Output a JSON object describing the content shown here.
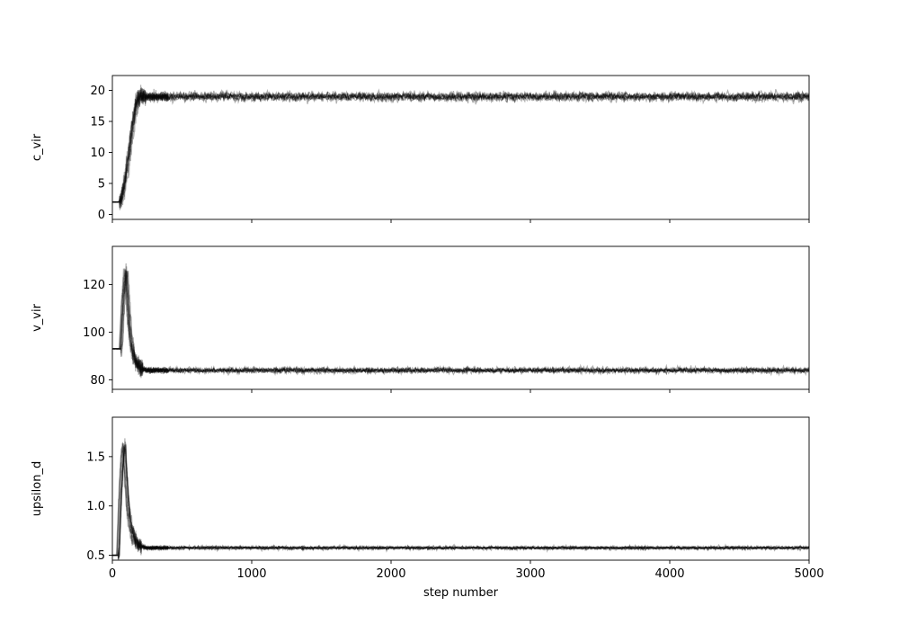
{
  "chart_data": [
    {
      "type": "line",
      "ylabel": "c_vir",
      "xlim": [
        0,
        5000
      ],
      "ylim": [
        -0.8,
        22.4
      ],
      "yticks": [
        0,
        5,
        10,
        15,
        20
      ],
      "initial": 2.0,
      "peak": null,
      "converged": 19.0,
      "noise": 0.55,
      "burn_in": {
        "start": 50,
        "end": 200
      },
      "line_color": "#000000"
    },
    {
      "type": "line",
      "ylabel": "v_vir",
      "xlim": [
        0,
        5000
      ],
      "ylim": [
        76,
        136
      ],
      "yticks": [
        80,
        100,
        120
      ],
      "initial": 93.0,
      "peak": 125.0,
      "converged": 84.0,
      "noise": 0.9,
      "burn_in": {
        "start": 60,
        "end": 180
      },
      "line_color": "#000000"
    },
    {
      "type": "line",
      "ylabel": "upsilon_d",
      "xlim": [
        0,
        5000
      ],
      "xlabel": "step number",
      "xticks": [
        0,
        1000,
        2000,
        3000,
        4000,
        5000
      ],
      "ylim": [
        0.45,
        1.9
      ],
      "yticks": [
        0.5,
        1.0,
        1.5
      ],
      "ytick_labels": [
        "0.5",
        "1.0",
        "1.5"
      ],
      "initial": 0.5,
      "peak": 1.62,
      "converged": 0.575,
      "noise": 0.014,
      "burn_in": {
        "start": 40,
        "end": 170
      },
      "line_color": "#000000"
    }
  ]
}
